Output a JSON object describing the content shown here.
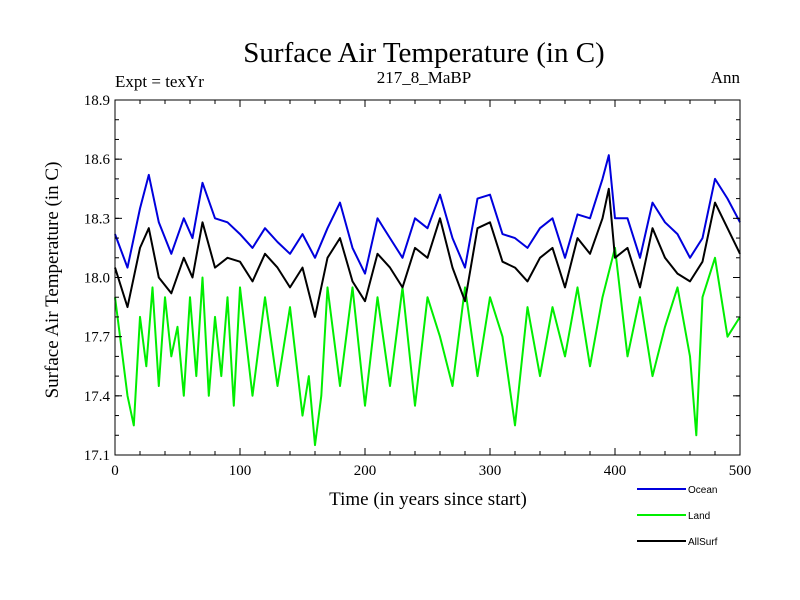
{
  "chart_data": {
    "type": "line",
    "title": "Surface Air Temperature (in C)",
    "subtitle": "217_8_MaBP",
    "left_note": "Expt = texYr",
    "right_note": "Ann",
    "xlabel": "Time (in years since start)",
    "ylabel": "Surface Air Temperature (in C)",
    "xlim": [
      0,
      500
    ],
    "ylim": [
      17.1,
      18.9
    ],
    "x_ticks": [
      0,
      100,
      200,
      300,
      400,
      500
    ],
    "x_tick_labels": [
      "0",
      "100",
      "200",
      "300",
      "400",
      "500"
    ],
    "y_ticks": [
      17.1,
      17.4,
      17.7,
      18.0,
      18.3,
      18.6,
      18.9
    ],
    "y_tick_labels": [
      "17.1",
      "17.4",
      "17.7",
      "18.0",
      "18.3",
      "18.6",
      "18.9"
    ],
    "grid": false,
    "legend_position": "bottom-right",
    "series": [
      {
        "name": "Ocean",
        "color": "#0000dd",
        "x": [
          0,
          10,
          20,
          27,
          35,
          45,
          55,
          62,
          70,
          80,
          90,
          100,
          110,
          120,
          130,
          140,
          150,
          160,
          170,
          180,
          190,
          200,
          210,
          220,
          230,
          240,
          250,
          260,
          270,
          280,
          290,
          300,
          310,
          320,
          330,
          340,
          350,
          360,
          370,
          380,
          390,
          395,
          400,
          410,
          420,
          430,
          440,
          450,
          460,
          470,
          480,
          490,
          500
        ],
        "values": [
          18.22,
          18.05,
          18.35,
          18.52,
          18.28,
          18.12,
          18.3,
          18.2,
          18.48,
          18.3,
          18.28,
          18.22,
          18.15,
          18.25,
          18.18,
          18.12,
          18.22,
          18.1,
          18.25,
          18.38,
          18.15,
          18.02,
          18.3,
          18.2,
          18.1,
          18.3,
          18.25,
          18.42,
          18.2,
          18.05,
          18.4,
          18.42,
          18.22,
          18.2,
          18.15,
          18.25,
          18.3,
          18.1,
          18.32,
          18.3,
          18.5,
          18.62,
          18.3,
          18.3,
          18.1,
          18.38,
          18.28,
          18.22,
          18.1,
          18.2,
          18.5,
          18.4,
          18.28
        ]
      },
      {
        "name": "Land",
        "color": "#00ee00",
        "x": [
          0,
          5,
          10,
          15,
          20,
          25,
          30,
          35,
          40,
          45,
          50,
          55,
          60,
          65,
          70,
          75,
          80,
          85,
          90,
          95,
          100,
          110,
          120,
          130,
          140,
          150,
          155,
          160,
          165,
          170,
          180,
          190,
          200,
          210,
          220,
          230,
          240,
          250,
          260,
          270,
          280,
          290,
          300,
          310,
          320,
          330,
          340,
          350,
          360,
          370,
          380,
          390,
          400,
          410,
          420,
          430,
          440,
          450,
          460,
          465,
          470,
          480,
          490,
          500
        ],
        "values": [
          17.9,
          17.65,
          17.4,
          17.25,
          17.8,
          17.55,
          17.95,
          17.45,
          17.9,
          17.6,
          17.75,
          17.4,
          17.9,
          17.5,
          18.0,
          17.4,
          17.8,
          17.5,
          17.9,
          17.35,
          17.95,
          17.4,
          17.9,
          17.45,
          17.85,
          17.3,
          17.5,
          17.15,
          17.4,
          17.95,
          17.45,
          17.95,
          17.35,
          17.9,
          17.45,
          17.95,
          17.35,
          17.9,
          17.7,
          17.45,
          17.95,
          17.5,
          17.9,
          17.7,
          17.25,
          17.85,
          17.5,
          17.85,
          17.6,
          17.95,
          17.55,
          17.9,
          18.15,
          17.6,
          17.9,
          17.5,
          17.75,
          17.95,
          17.6,
          17.2,
          17.9,
          18.1,
          17.7,
          17.8
        ]
      },
      {
        "name": "AllSurf",
        "color": "#000000",
        "x": [
          0,
          10,
          20,
          27,
          35,
          45,
          55,
          62,
          70,
          80,
          90,
          100,
          110,
          120,
          130,
          140,
          150,
          160,
          170,
          180,
          190,
          200,
          210,
          220,
          230,
          240,
          250,
          260,
          270,
          280,
          290,
          300,
          310,
          320,
          330,
          340,
          350,
          360,
          370,
          380,
          390,
          395,
          400,
          410,
          420,
          430,
          440,
          450,
          460,
          470,
          480,
          490,
          500
        ],
        "values": [
          18.05,
          17.85,
          18.15,
          18.25,
          18.0,
          17.92,
          18.1,
          18.0,
          18.28,
          18.05,
          18.1,
          18.08,
          17.98,
          18.12,
          18.05,
          17.95,
          18.05,
          17.8,
          18.1,
          18.2,
          17.98,
          17.88,
          18.12,
          18.05,
          17.95,
          18.15,
          18.1,
          18.3,
          18.05,
          17.88,
          18.25,
          18.28,
          18.08,
          18.05,
          17.98,
          18.1,
          18.15,
          17.95,
          18.2,
          18.12,
          18.3,
          18.45,
          18.1,
          18.15,
          17.95,
          18.25,
          18.1,
          18.02,
          17.98,
          18.08,
          18.38,
          18.25,
          18.12
        ]
      }
    ]
  }
}
